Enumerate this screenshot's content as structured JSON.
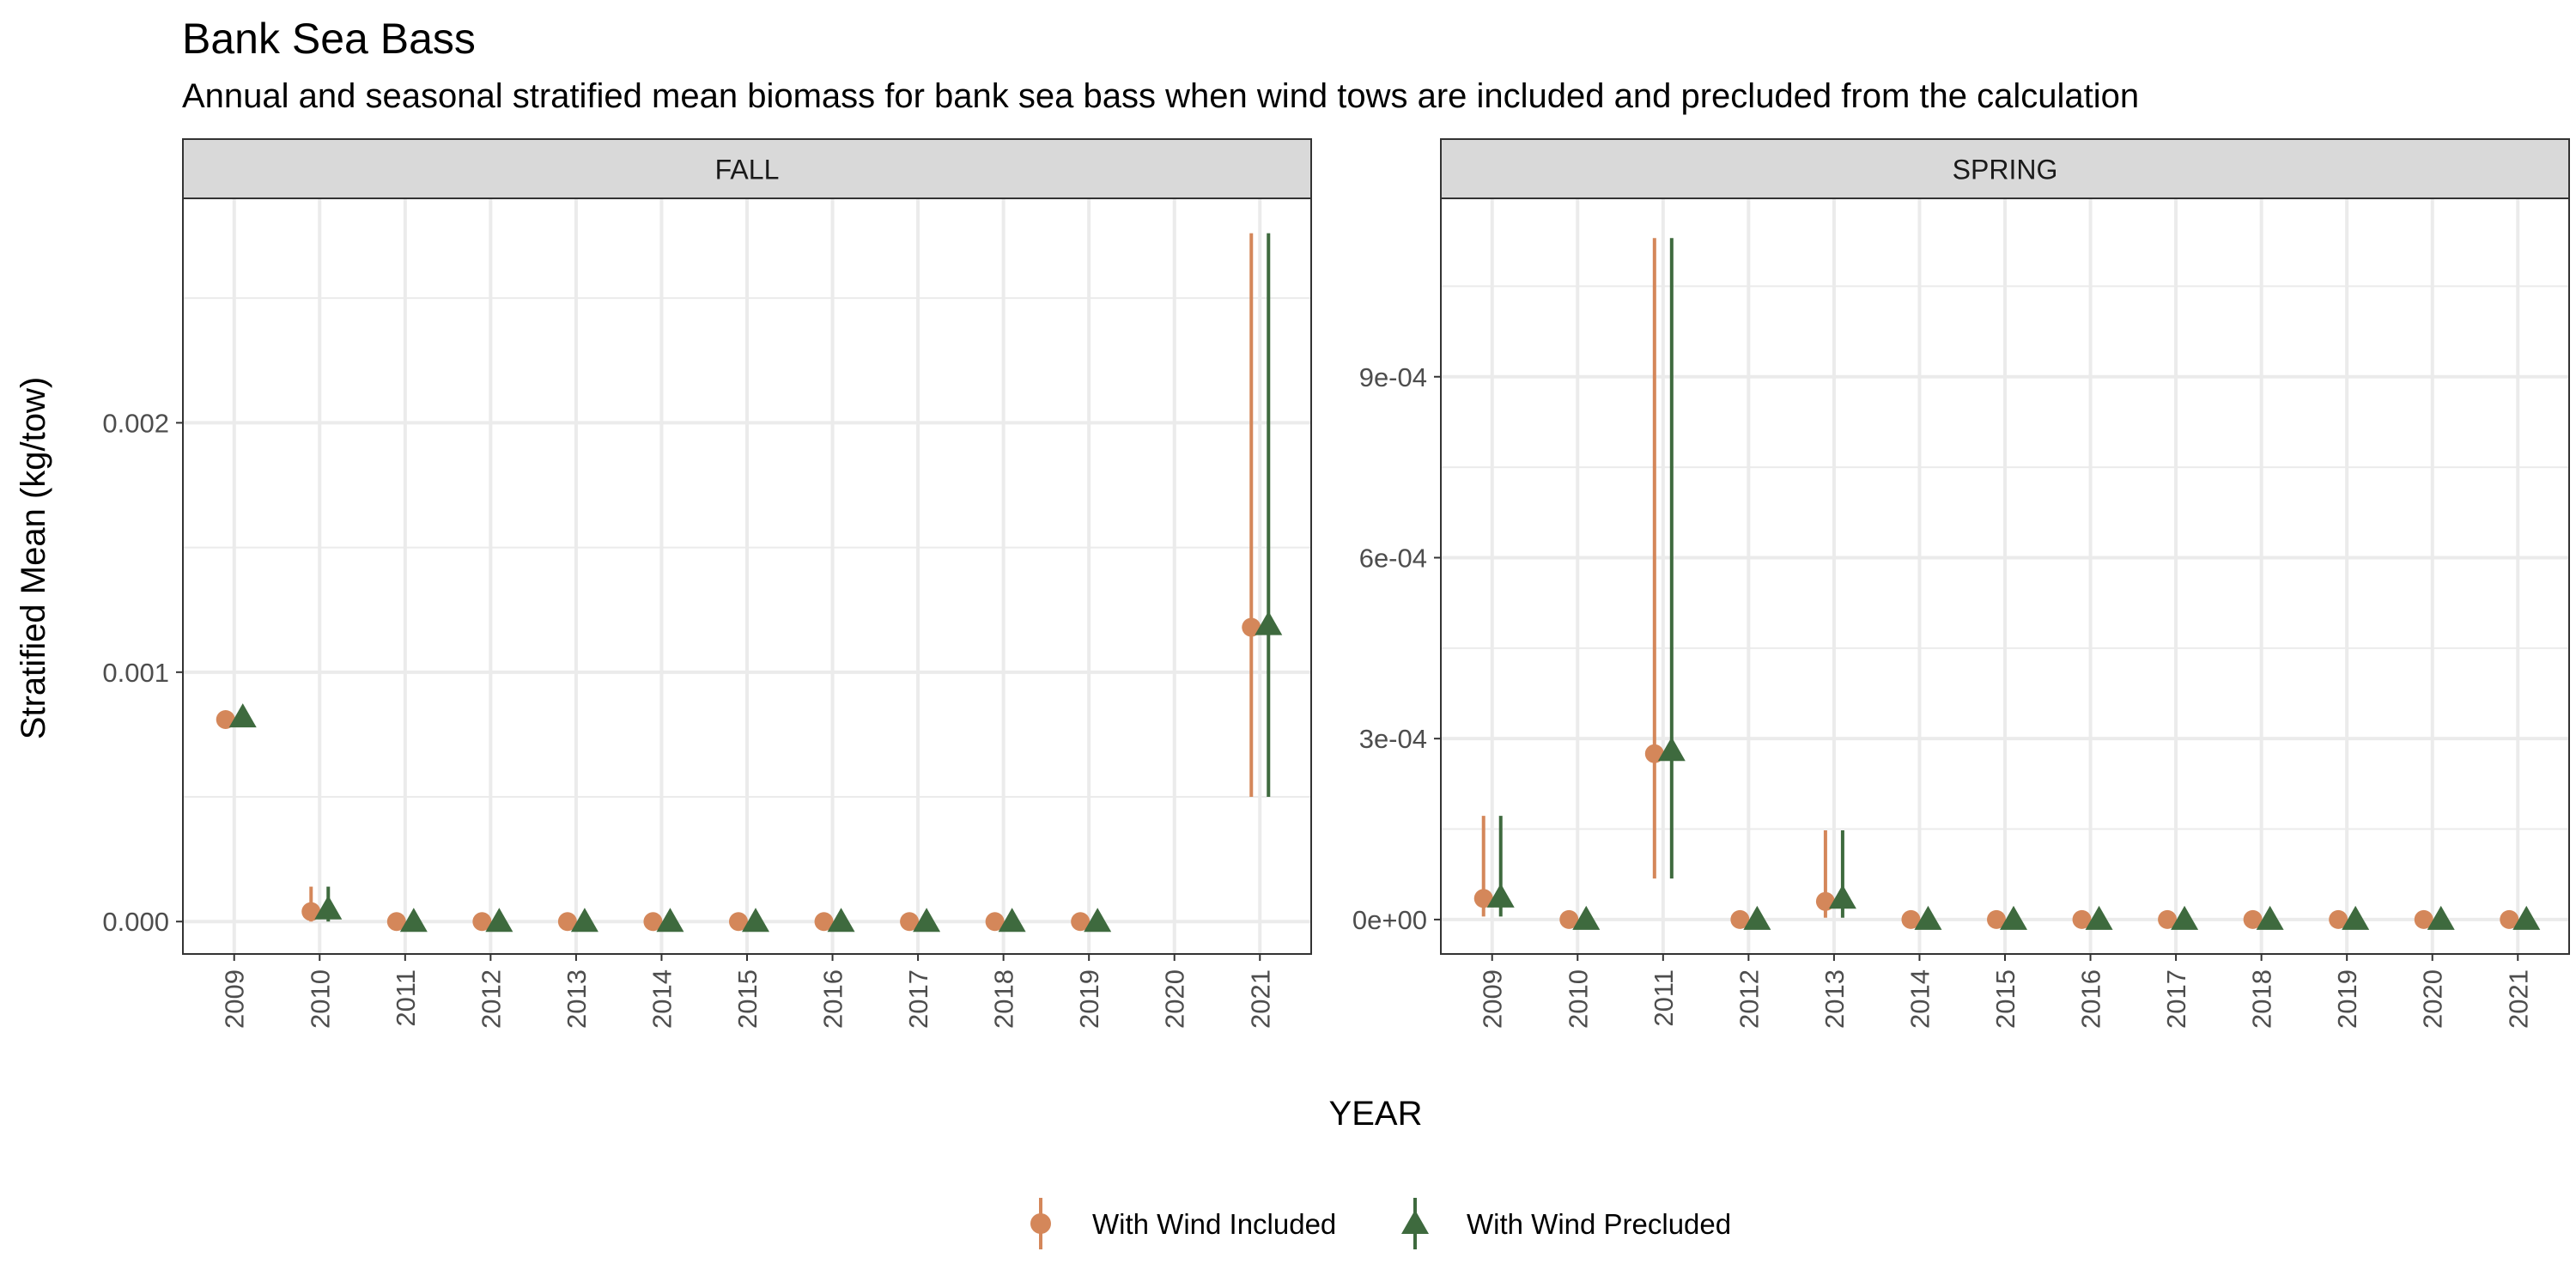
{
  "title": "Bank Sea Bass",
  "subtitle": "Annual and seasonal stratified mean biomass for bank sea bass when wind tows are included and precluded from the calculation",
  "xlabel": "YEAR",
  "ylabel": "Stratified Mean (kg/tow)",
  "legend": {
    "position": "bottom",
    "entries": [
      {
        "name": "With Wind Included",
        "color": "#D4875A",
        "shape": "circle"
      },
      {
        "name": "With Wind Precluded",
        "color": "#3E6A3E",
        "shape": "triangle"
      }
    ]
  },
  "colors": {
    "included": "#D4875A",
    "precluded": "#3E6A3E",
    "strip_bg": "#D9D9D9",
    "grid": "#EBEBEB",
    "panel_border": "#333333",
    "axis_text": "#4D4D4D"
  },
  "chart_data": [
    {
      "type": "scatter",
      "panel": "FALL",
      "categories": [
        "2009",
        "2010",
        "2011",
        "2012",
        "2013",
        "2014",
        "2015",
        "2016",
        "2017",
        "2018",
        "2019",
        "2020",
        "2021"
      ],
      "ylim": [
        -0.00013,
        0.0029
      ],
      "yticks": [
        0,
        0.001,
        0.002
      ],
      "ytick_labels": [
        "0.000",
        "0.001",
        "0.002"
      ],
      "grid": true,
      "series": [
        {
          "name": "With Wind Included",
          "values": [
            0.00081,
            4e-05,
            0,
            0,
            0,
            0,
            0,
            0,
            0,
            0,
            0,
            null,
            0.00118
          ],
          "lower": [
            null,
            0,
            null,
            null,
            null,
            null,
            null,
            null,
            null,
            null,
            null,
            null,
            0.0005
          ],
          "upper": [
            null,
            0.00014,
            null,
            null,
            null,
            null,
            null,
            null,
            null,
            null,
            null,
            null,
            0.00276
          ]
        },
        {
          "name": "With Wind Precluded",
          "values": [
            0.00082,
            5e-05,
            0,
            0,
            0,
            0,
            0,
            0,
            0,
            0,
            0,
            null,
            0.00119
          ],
          "lower": [
            null,
            0,
            null,
            null,
            null,
            null,
            null,
            null,
            null,
            null,
            null,
            null,
            0.0005
          ],
          "upper": [
            null,
            0.00014,
            null,
            null,
            null,
            null,
            null,
            null,
            null,
            null,
            null,
            null,
            0.00276
          ]
        }
      ]
    },
    {
      "type": "scatter",
      "panel": "SPRING",
      "categories": [
        "2009",
        "2010",
        "2011",
        "2012",
        "2013",
        "2014",
        "2015",
        "2016",
        "2017",
        "2018",
        "2019",
        "2020",
        "2021"
      ],
      "ylim": [
        -5.71e-05,
        0.0011958
      ],
      "yticks": [
        0,
        0.0003,
        0.0006,
        0.0009
      ],
      "ytick_labels": [
        "0e+00",
        "3e-04",
        "6e-04",
        "9e-04"
      ],
      "grid": true,
      "series": [
        {
          "name": "With Wind Included",
          "values": [
            3.5e-05,
            0,
            0.000275,
            0,
            3e-05,
            0,
            0,
            0,
            0,
            0,
            0,
            0,
            0
          ],
          "lower": [
            5e-06,
            null,
            6.8e-05,
            null,
            3e-06,
            null,
            null,
            null,
            null,
            null,
            null,
            null,
            null
          ],
          "upper": [
            0.000172,
            null,
            0.00113,
            null,
            0.000148,
            null,
            null,
            null,
            null,
            null,
            null,
            null,
            null
          ]
        },
        {
          "name": "With Wind Precluded",
          "values": [
            3.7e-05,
            0,
            0.00028,
            0,
            3.5e-05,
            0,
            0,
            0,
            0,
            0,
            0,
            0,
            0
          ],
          "lower": [
            5e-06,
            null,
            6.8e-05,
            null,
            3e-06,
            null,
            null,
            null,
            null,
            null,
            null,
            null,
            null
          ],
          "upper": [
            0.000172,
            null,
            0.00113,
            null,
            0.000148,
            null,
            null,
            null,
            null,
            null,
            null,
            null,
            null
          ]
        }
      ]
    }
  ]
}
